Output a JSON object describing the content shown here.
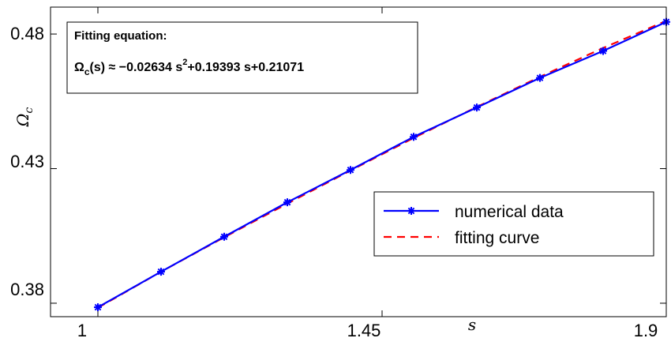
{
  "chart_data": {
    "type": "line",
    "xlabel": "s",
    "ylabel": "Ω_c",
    "xlim": [
      0.925,
      1.9
    ],
    "ylim": [
      0.375,
      0.49
    ],
    "x_ticks": [
      "1",
      "1.45",
      "1.9"
    ],
    "y_ticks": [
      "0.38",
      "0.43",
      "0.48"
    ],
    "grid": false,
    "legend_position": "lower-right",
    "series": [
      {
        "name": "numerical data",
        "color": "#0000ff",
        "style": "solid",
        "marker": "asterisk",
        "x": [
          1.0,
          1.1,
          1.2,
          1.3,
          1.4,
          1.5,
          1.6,
          1.7,
          1.8,
          1.9
        ],
        "y": [
          0.3785,
          0.3917,
          0.4047,
          0.4175,
          0.4295,
          0.4418,
          0.4527,
          0.4637,
          0.4737,
          0.4845
        ]
      },
      {
        "name": "fitting curve",
        "color": "#ff0000",
        "style": "dashed",
        "x": [
          1.0,
          1.1,
          1.2,
          1.3,
          1.4,
          1.5,
          1.6,
          1.7,
          1.8,
          1.9
        ],
        "y": [
          0.3783,
          0.3917,
          0.4045,
          0.417,
          0.4293,
          0.4414,
          0.4529,
          0.4641,
          0.4748,
          0.4849
        ]
      }
    ],
    "annotation": {
      "title": "Fitting equation:",
      "lhs_symbol": "Ω",
      "lhs_subscript": "c",
      "lhs_arg": "(s) ≈ −0.02634 s",
      "exponent": "2",
      "rhs": "+0.19393 s+0.21071"
    }
  }
}
